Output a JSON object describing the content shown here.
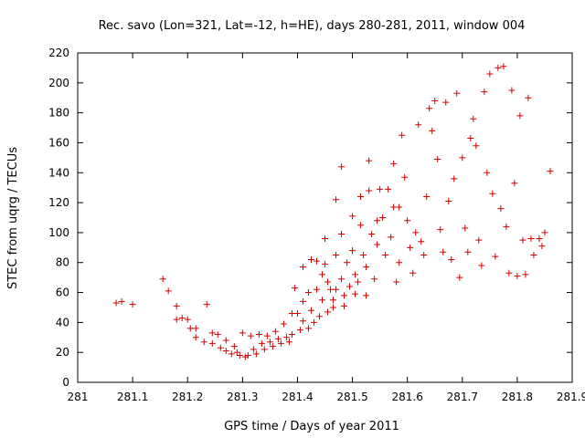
{
  "chart_data": {
    "type": "scatter",
    "title": "Rec. savo (Lon=321, Lat=-12, h=HE), days 280-281, 2011, window 004",
    "xlabel": "GPS time / Days of year 2011",
    "ylabel": "STEC from uqrg / TECUs",
    "xlim": [
      281,
      281.9
    ],
    "ylim": [
      0,
      220
    ],
    "xticks": [
      281,
      281.1,
      281.2,
      281.3,
      281.4,
      281.5,
      281.6,
      281.7,
      281.8,
      281.9
    ],
    "xtick_labels": [
      "281",
      "281.1",
      "281.2",
      "281.3",
      "281.4",
      "281.5",
      "281.6",
      "281.7",
      "281.8",
      "281.9"
    ],
    "yticks": [
      0,
      20,
      40,
      60,
      80,
      100,
      120,
      140,
      160,
      180,
      200,
      220
    ],
    "ytick_labels": [
      "0",
      "20",
      "40",
      "60",
      "80",
      "100",
      "120",
      "140",
      "160",
      "180",
      "200",
      "220"
    ],
    "grid": false,
    "legend": "none",
    "marker": "plus",
    "color": "#d40000",
    "series": [
      {
        "name": "STEC",
        "points": [
          [
            281.07,
            53
          ],
          [
            281.08,
            54
          ],
          [
            281.1,
            52
          ],
          [
            281.155,
            69
          ],
          [
            281.165,
            61
          ],
          [
            281.18,
            51
          ],
          [
            281.18,
            42
          ],
          [
            281.19,
            43
          ],
          [
            281.2,
            42
          ],
          [
            281.205,
            36
          ],
          [
            281.215,
            36
          ],
          [
            281.215,
            30
          ],
          [
            281.23,
            27
          ],
          [
            281.235,
            52
          ],
          [
            281.245,
            33
          ],
          [
            281.245,
            26
          ],
          [
            281.255,
            32
          ],
          [
            281.26,
            23
          ],
          [
            281.27,
            21
          ],
          [
            281.27,
            28
          ],
          [
            281.28,
            19
          ],
          [
            281.285,
            24
          ],
          [
            281.29,
            20
          ],
          [
            281.295,
            18
          ],
          [
            281.3,
            33
          ],
          [
            281.305,
            17
          ],
          [
            281.31,
            18
          ],
          [
            281.315,
            31
          ],
          [
            281.32,
            22
          ],
          [
            281.325,
            19
          ],
          [
            281.33,
            32
          ],
          [
            281.335,
            26
          ],
          [
            281.34,
            22
          ],
          [
            281.345,
            31
          ],
          [
            281.35,
            27
          ],
          [
            281.355,
            24
          ],
          [
            281.36,
            34
          ],
          [
            281.365,
            29
          ],
          [
            281.37,
            26
          ],
          [
            281.375,
            39
          ],
          [
            281.38,
            30
          ],
          [
            281.385,
            27
          ],
          [
            281.39,
            32
          ],
          [
            281.39,
            46
          ],
          [
            281.395,
            63
          ],
          [
            281.4,
            46
          ],
          [
            281.405,
            35
          ],
          [
            281.41,
            41
          ],
          [
            281.41,
            54
          ],
          [
            281.41,
            77
          ],
          [
            281.42,
            60
          ],
          [
            281.42,
            36
          ],
          [
            281.425,
            48
          ],
          [
            281.425,
            82
          ],
          [
            281.43,
            40
          ],
          [
            281.435,
            81
          ],
          [
            281.435,
            62
          ],
          [
            281.44,
            44
          ],
          [
            281.445,
            72
          ],
          [
            281.445,
            55
          ],
          [
            281.45,
            96
          ],
          [
            281.45,
            79
          ],
          [
            281.455,
            67
          ],
          [
            281.455,
            47
          ],
          [
            281.46,
            62
          ],
          [
            281.465,
            55
          ],
          [
            281.465,
            50
          ],
          [
            281.47,
            122
          ],
          [
            281.47,
            85
          ],
          [
            281.47,
            62
          ],
          [
            281.48,
            99
          ],
          [
            281.48,
            144
          ],
          [
            281.48,
            69
          ],
          [
            281.485,
            51
          ],
          [
            281.485,
            58
          ],
          [
            281.49,
            80
          ],
          [
            281.495,
            64
          ],
          [
            281.5,
            111
          ],
          [
            281.5,
            88
          ],
          [
            281.505,
            72
          ],
          [
            281.505,
            59
          ],
          [
            281.51,
            67
          ],
          [
            281.515,
            124
          ],
          [
            281.515,
            105
          ],
          [
            281.52,
            85
          ],
          [
            281.525,
            77
          ],
          [
            281.525,
            58
          ],
          [
            281.53,
            148
          ],
          [
            281.53,
            128
          ],
          [
            281.535,
            99
          ],
          [
            281.54,
            69
          ],
          [
            281.545,
            92
          ],
          [
            281.545,
            108
          ],
          [
            281.55,
            129
          ],
          [
            281.555,
            110
          ],
          [
            281.56,
            85
          ],
          [
            281.565,
            129
          ],
          [
            281.57,
            97
          ],
          [
            281.575,
            117
          ],
          [
            281.575,
            146
          ],
          [
            281.58,
            67
          ],
          [
            281.585,
            80
          ],
          [
            281.585,
            117
          ],
          [
            281.59,
            165
          ],
          [
            281.595,
            137
          ],
          [
            281.6,
            108
          ],
          [
            281.605,
            90
          ],
          [
            281.61,
            73
          ],
          [
            281.615,
            100
          ],
          [
            281.62,
            172
          ],
          [
            281.625,
            94
          ],
          [
            281.63,
            85
          ],
          [
            281.635,
            124
          ],
          [
            281.64,
            183
          ],
          [
            281.645,
            168
          ],
          [
            281.65,
            188
          ],
          [
            281.655,
            149
          ],
          [
            281.66,
            102
          ],
          [
            281.665,
            87
          ],
          [
            281.67,
            187
          ],
          [
            281.675,
            121
          ],
          [
            281.68,
            82
          ],
          [
            281.685,
            136
          ],
          [
            281.69,
            193
          ],
          [
            281.695,
            70
          ],
          [
            281.7,
            150
          ],
          [
            281.705,
            103
          ],
          [
            281.71,
            87
          ],
          [
            281.715,
            163
          ],
          [
            281.72,
            176
          ],
          [
            281.725,
            158
          ],
          [
            281.73,
            95
          ],
          [
            281.735,
            78
          ],
          [
            281.74,
            194
          ],
          [
            281.745,
            140
          ],
          [
            281.75,
            206
          ],
          [
            281.755,
            126
          ],
          [
            281.76,
            84
          ],
          [
            281.765,
            210
          ],
          [
            281.77,
            116
          ],
          [
            281.775,
            211
          ],
          [
            281.78,
            104
          ],
          [
            281.785,
            73
          ],
          [
            281.79,
            195
          ],
          [
            281.795,
            133
          ],
          [
            281.8,
            71
          ],
          [
            281.805,
            178
          ],
          [
            281.81,
            95
          ],
          [
            281.815,
            72
          ],
          [
            281.82,
            190
          ],
          [
            281.825,
            96
          ],
          [
            281.83,
            85
          ],
          [
            281.84,
            96
          ],
          [
            281.845,
            91
          ],
          [
            281.85,
            100
          ],
          [
            281.86,
            141
          ]
        ]
      }
    ]
  }
}
